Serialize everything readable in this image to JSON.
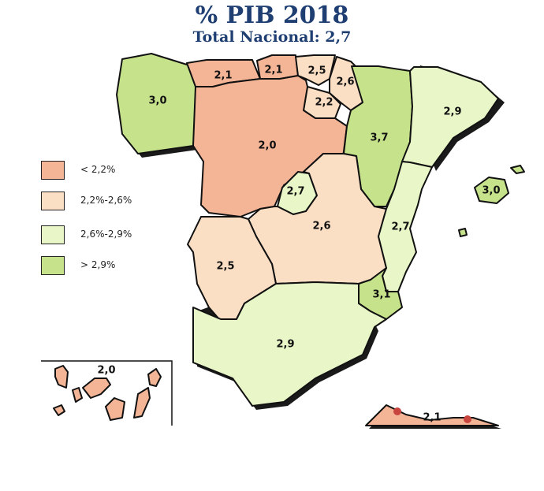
{
  "title": "% PIB 2018",
  "subtitle": "Total Nacional: 2,7",
  "colors": {
    "low": "#f4b597",
    "midlow": "#fbdfc5",
    "midhigh": "#e8f6c8",
    "high": "#c6e38c",
    "title": "#1f3f73",
    "border": "#111111"
  },
  "legend": [
    {
      "label": "< 2,2%",
      "color": "#f4b597"
    },
    {
      "label": "2,2%-2,6%",
      "color": "#fbdfc5"
    },
    {
      "label": "2,6%-2,9%",
      "color": "#e8f6c8"
    },
    {
      "label": "> 2,9%",
      "color": "#c6e38c"
    }
  ],
  "regions": {
    "galicia": "3,0",
    "asturias": "2,1",
    "cantabria": "2,1",
    "pais_vasco": "2,5",
    "navarra": "2,6",
    "la_rioja": "2,2",
    "aragon": "3,7",
    "cataluna": "2,9",
    "castilla_leon": "2,0",
    "madrid": "2,7",
    "castilla_la_mancha": "2,6",
    "valencia": "2,7",
    "baleares": "3,0",
    "extremadura": "2,5",
    "murcia": "3,1",
    "andalucia": "2,9",
    "canarias": "2,0",
    "ceuta_melilla": "2,1"
  }
}
